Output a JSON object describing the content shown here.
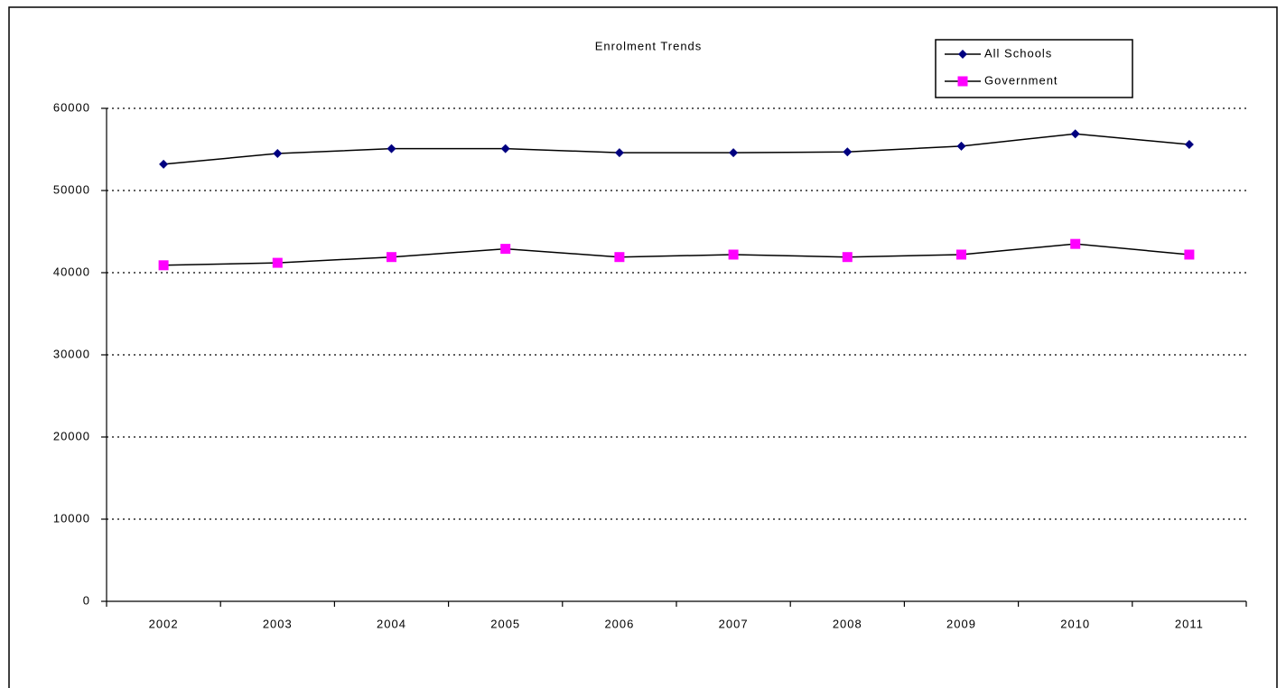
{
  "chart_data": {
    "type": "line",
    "title": "Enrolment Trends",
    "categories": [
      "2002",
      "2003",
      "2004",
      "2005",
      "2006",
      "2007",
      "2008",
      "2009",
      "2010",
      "2011"
    ],
    "series": [
      {
        "name": "All Schools",
        "color": "#000080",
        "marker": "diamond",
        "values": [
          53200,
          54500,
          55100,
          55100,
          54600,
          54600,
          54700,
          55400,
          56900,
          55600
        ]
      },
      {
        "name": "Government",
        "color": "#ff00ff",
        "marker": "square",
        "values": [
          40900,
          41200,
          41900,
          42900,
          41900,
          42200,
          41900,
          42200,
          43500,
          42200
        ]
      }
    ],
    "line_color": "#000000",
    "ylim": [
      0,
      60000
    ],
    "yticks": [
      0,
      10000,
      20000,
      30000,
      40000,
      50000,
      60000
    ],
    "grid": true,
    "legend_position": "top-right"
  }
}
